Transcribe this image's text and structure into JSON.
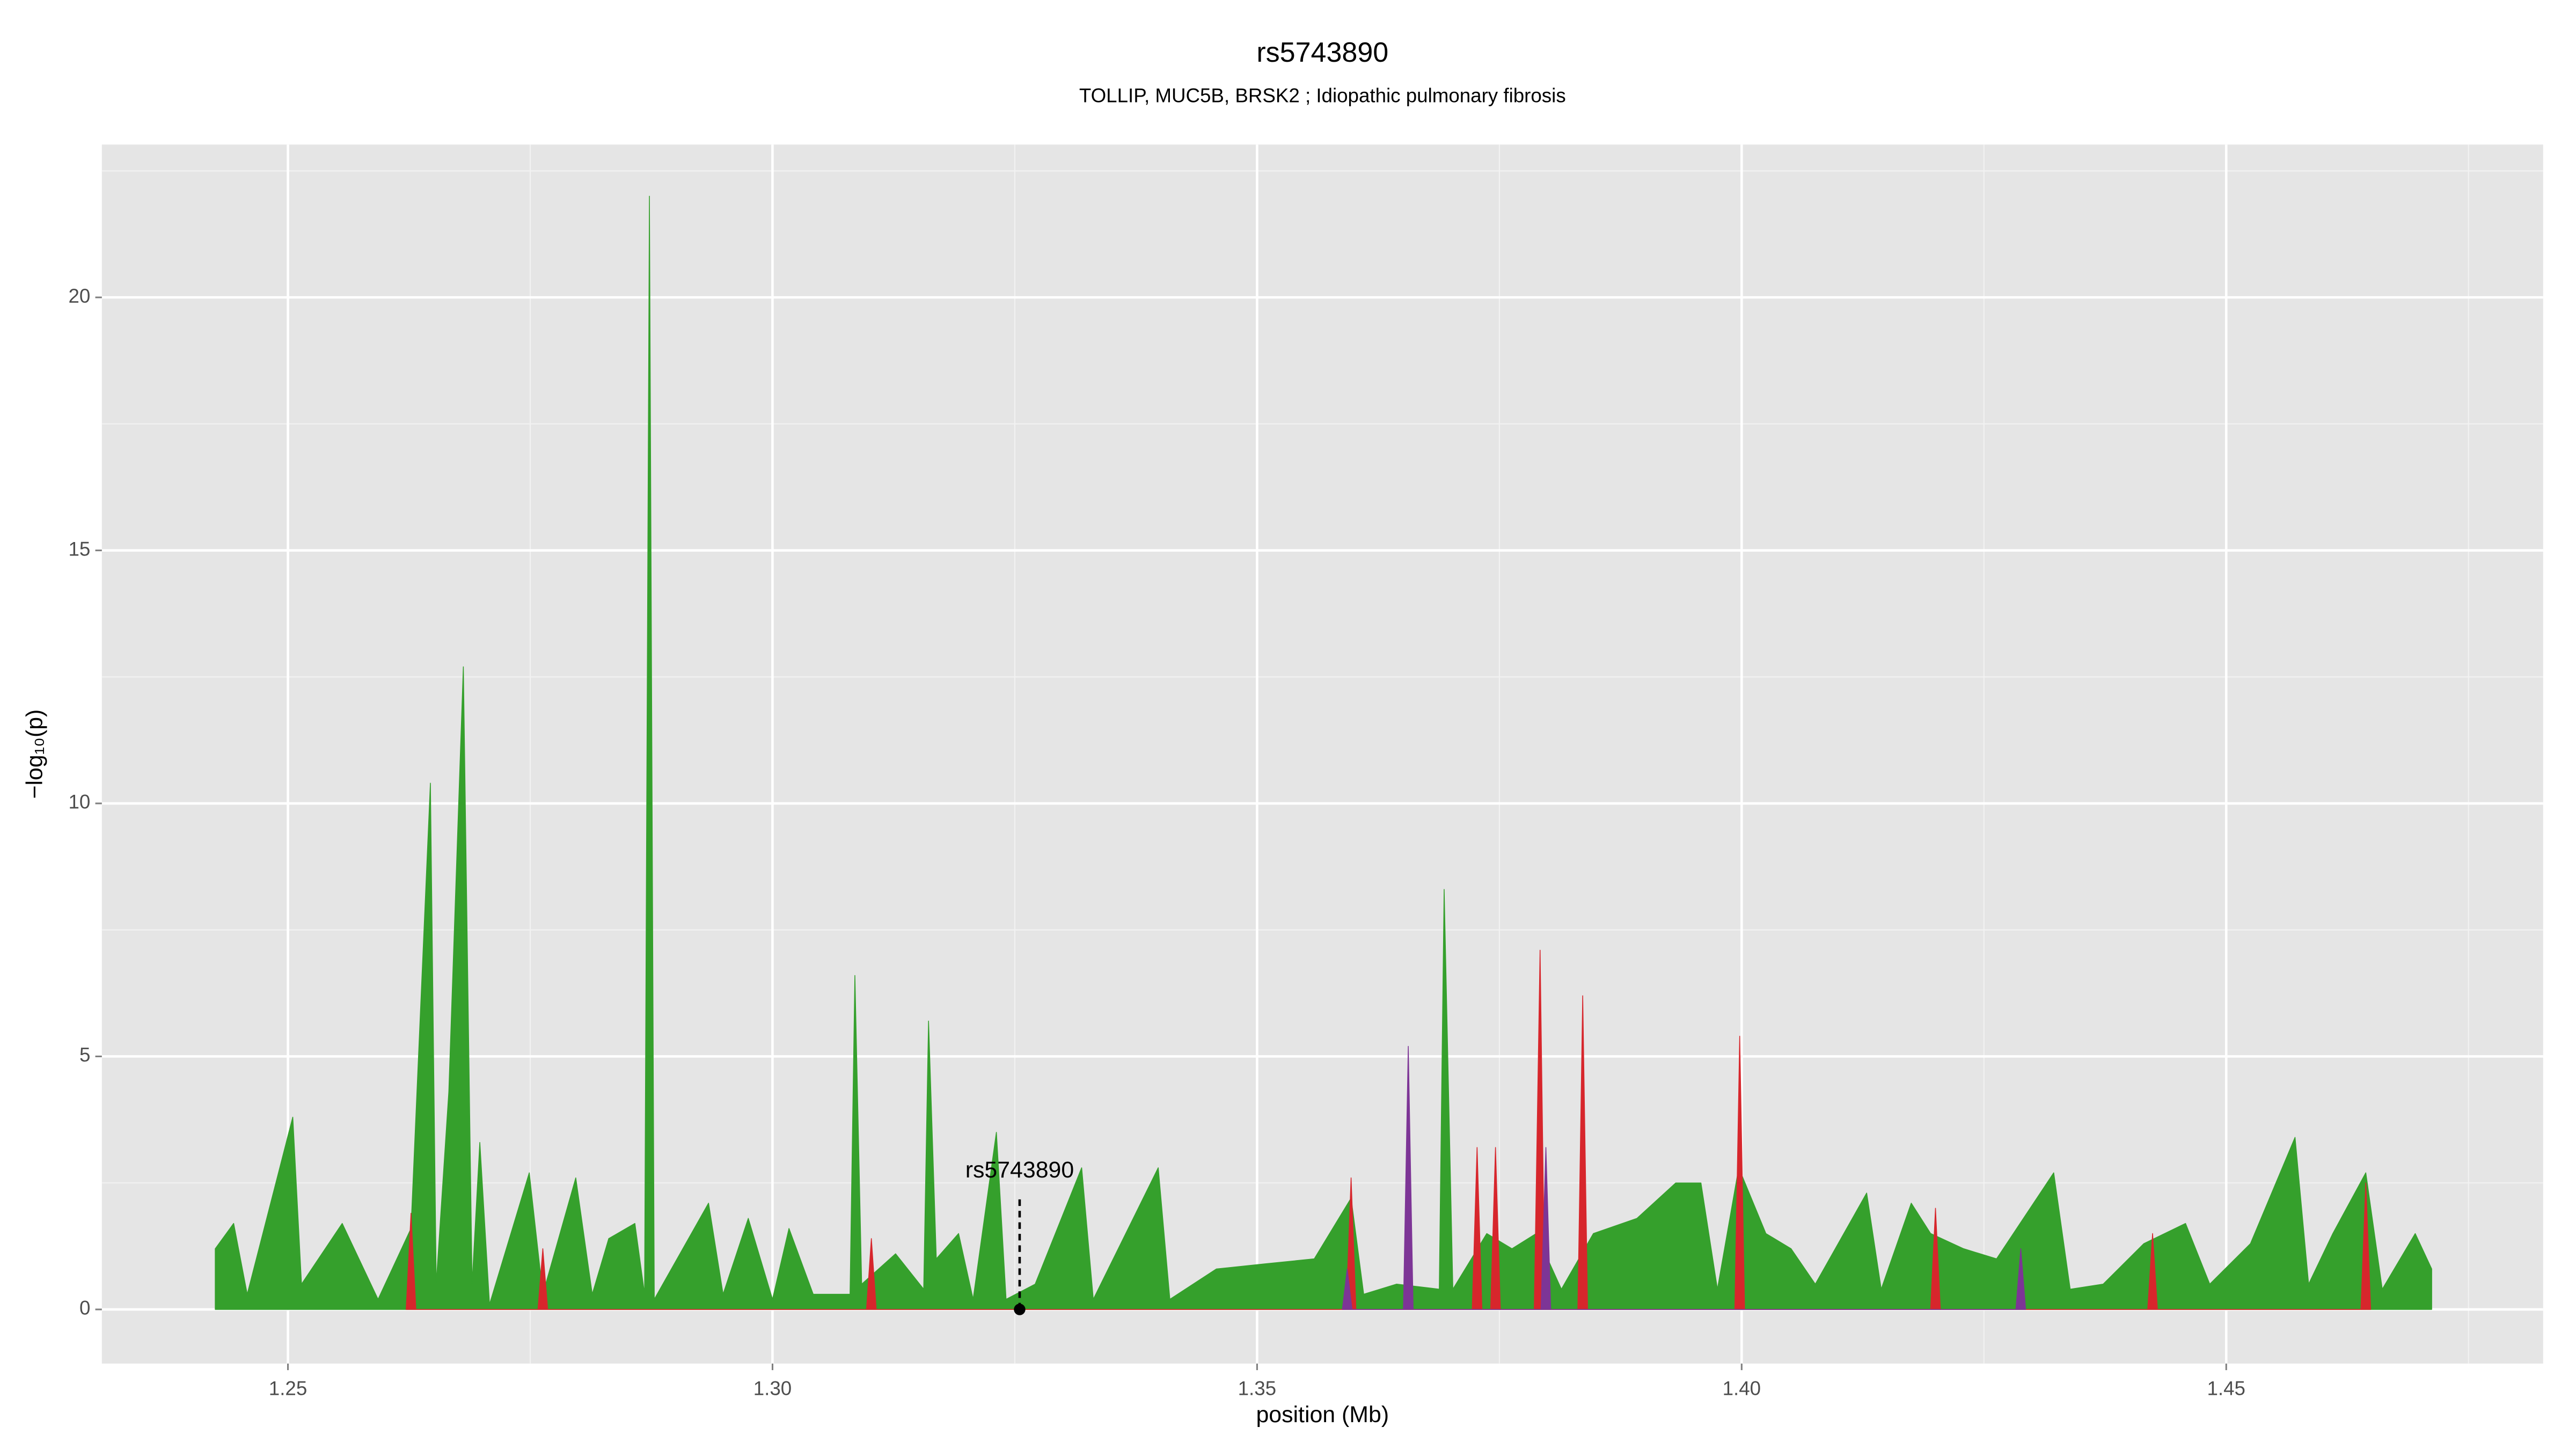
{
  "chart_data": {
    "type": "area",
    "title": "rs5743890",
    "subtitle": "TOLLIP, MUC5B, BRSK2 ; Idiopathic pulmonary fibrosis",
    "x_label": "position (Mb)",
    "y_label": "−log₁₀(p)",
    "xlim": [
      1.2308,
      1.4827
    ],
    "ylim": [
      -1.07,
      23.02
    ],
    "xticks": [
      1.25,
      {
        "value": 1.3,
        "label": "1.30"
      },
      1.35,
      {
        "value": 1.4,
        "label": "1.40"
      },
      1.45
    ],
    "yticks": [
      0,
      5,
      10,
      15,
      20
    ],
    "grid": true,
    "series": [
      {
        "color": "#35a02c",
        "x": [
          1.2425,
          1.2444,
          1.2458,
          1.2505,
          1.2514,
          1.2556,
          1.2593,
          1.2627,
          1.2647,
          1.2653,
          1.2666,
          1.2681,
          1.269,
          1.2698,
          1.2708,
          1.2749,
          1.2763,
          1.2797,
          1.2814,
          1.2831,
          1.2858,
          1.2868,
          1.2873,
          1.2878,
          1.2934,
          1.2949,
          1.2975,
          1.3,
          1.3017,
          1.3042,
          1.308,
          1.3085,
          1.3092,
          1.3127,
          1.3156,
          1.3161,
          1.3169,
          1.3192,
          1.3207,
          1.3231,
          1.3241,
          1.3271,
          1.3319,
          1.3331,
          1.3398,
          1.341,
          1.3458,
          1.3508,
          1.3559,
          1.3597,
          1.361,
          1.3644,
          1.3688,
          1.3693,
          1.3702,
          1.3737,
          1.3763,
          1.3788,
          1.3814,
          1.3847,
          1.3892,
          1.3932,
          1.3958,
          1.3975,
          1.3997,
          1.4025,
          1.4051,
          1.4076,
          1.4129,
          1.4144,
          1.4175,
          1.4195,
          1.4229,
          1.4263,
          1.4322,
          1.4339,
          1.4373,
          1.4415,
          1.4458,
          1.4483,
          1.4525,
          1.4571,
          1.4585,
          1.461,
          1.4644,
          1.4661,
          1.4695,
          1.4712
        ],
        "values": [
          1.2,
          1.7,
          0.3,
          3.8,
          0.5,
          1.7,
          0.2,
          1.6,
          10.4,
          0.5,
          4.3,
          12.7,
          0.5,
          3.3,
          0.1,
          2.7,
          0.3,
          2.6,
          0.3,
          1.4,
          1.7,
          0.3,
          22,
          0.2,
          2.1,
          0.3,
          1.8,
          0.2,
          1.6,
          0.3,
          0.3,
          6.6,
          0.5,
          1.1,
          0.4,
          5.7,
          1.0,
          1.5,
          0.2,
          3.5,
          0.2,
          0.5,
          2.8,
          0.2,
          2.8,
          0.2,
          0.8,
          0.9,
          1.0,
          2.2,
          0.3,
          0.5,
          0.4,
          8.3,
          0.4,
          1.5,
          1.2,
          1.5,
          0.4,
          1.5,
          1.8,
          2.5,
          2.5,
          0.4,
          2.8,
          1.5,
          1.2,
          0.5,
          2.3,
          0.4,
          2.1,
          1.5,
          1.2,
          1.0,
          2.7,
          0.4,
          0.5,
          1.3,
          1.7,
          0.5,
          1.3,
          3.4,
          0.5,
          1.5,
          2.7,
          0.4,
          1.5,
          0.8
        ]
      },
      {
        "color": "#d7262c",
        "x": [
          1.2622,
          1.2627,
          1.2632,
          1.2758,
          1.2763,
          1.2768,
          1.3097,
          1.3102,
          1.3107,
          1.3592,
          1.3597,
          1.3602,
          1.3722,
          1.3727,
          1.3732,
          1.3741,
          1.3746,
          1.3751,
          1.3786,
          1.3792,
          1.3797,
          1.3831,
          1.3836,
          1.3841,
          1.3993,
          1.3998,
          1.4003,
          1.4195,
          1.42,
          1.4205,
          1.4419,
          1.4424,
          1.4429,
          1.4639,
          1.4644,
          1.4649
        ],
        "values": [
          0,
          1.9,
          0,
          0,
          1.2,
          0,
          0,
          1.4,
          0,
          0,
          2.6,
          0,
          0,
          3.2,
          0,
          0,
          3.2,
          0,
          0,
          7.1,
          0,
          0,
          6.2,
          0,
          0,
          5.4,
          0,
          0,
          2.0,
          0,
          0,
          1.5,
          0,
          0,
          2.5,
          0
        ]
      },
      {
        "color": "#7d3596",
        "x": [
          1.3588,
          1.3593,
          1.3598,
          1.3651,
          1.3656,
          1.3661,
          1.3793,
          1.3798,
          1.3803,
          1.4283,
          1.4288,
          1.4293
        ],
        "values": [
          0,
          0.8,
          0,
          0,
          5.2,
          0,
          0,
          3.2,
          0,
          0,
          1.2,
          0
        ]
      }
    ],
    "annotation": {
      "text": "rs5743890",
      "x": 1.3255,
      "y": 0
    }
  }
}
